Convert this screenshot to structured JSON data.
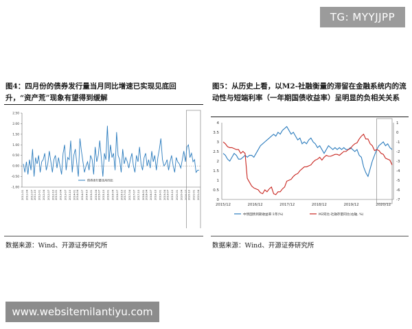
{
  "watermark_top": "TG: MYYJJPP",
  "watermark_bottom": "www.websitemilantiyu.com",
  "left_figure": {
    "title": "图4：四月份的债券发行量当月同比增速已实现见底回升，“资产荒”现象有望得到缓解",
    "source": "数据来源：Wind、开源证券研究所"
  },
  "right_figure": {
    "title": "图5：从历史上看，以M2-社融衡量的滞留在金融系统内的流动性与短端利率（一年期国债收益率）呈明显的负相关关系",
    "source": "数据来源：Wind、开源证券研究所"
  },
  "chart_data": [
    {
      "type": "line",
      "legend": [
        "债券发行量当月同比"
      ],
      "ylim": [
        -1.0,
        2.5
      ],
      "y_ticks": [
        "2.50",
        "2.00",
        "1.50",
        "1.00",
        "0.50",
        "0.00",
        "-0.50",
        "-1.00"
      ],
      "x_tick_labels": [
        "2011-01",
        "2011-04",
        "2011-07",
        "2011-10",
        "2012-01",
        "2012-04",
        "2012-07",
        "2012-10",
        "2013-01",
        "2013-04",
        "2013-07",
        "2013-10",
        "2014-01",
        "2014-04",
        "2014-07",
        "2014-10",
        "2015-01",
        "2015-04",
        "2015-07",
        "2015-10",
        "2016-01",
        "2016-04",
        "2016-07",
        "2016-10",
        "2017-01",
        "2017-04",
        "2017-07",
        "2017-10",
        "2018-01",
        "2018-04",
        "2018-07",
        "2018-10",
        "2019-01",
        "2019-04",
        "2019-07",
        "2019-10",
        "2020-01",
        "2020-04",
        "2020-07",
        "2020-10",
        "2021-01",
        "2021-04"
      ],
      "values": [
        0.1,
        -0.3,
        0.2,
        -0.4,
        0.3,
        -0.2,
        0.8,
        -0.5,
        0.4,
        0.1,
        0.5,
        -0.3,
        0.2,
        0.3,
        0.6,
        -0.2,
        0.1,
        0.7,
        0.2,
        -0.3,
        0.3,
        0.5,
        -0.1,
        0.4,
        0.0,
        -0.4,
        0.6,
        1.0,
        -0.2,
        0.4,
        0.3,
        1.2,
        -0.3,
        0.5,
        0.8,
        0.1,
        -0.5,
        1.3,
        0.7,
        0.2,
        -0.3,
        0.0,
        0.2,
        -0.2,
        0.5,
        0.3,
        -0.4,
        0.9,
        0.2,
        0.5,
        1.2,
        0.4,
        -0.5,
        0.6,
        0.3,
        1.9,
        0.2,
        1.0,
        0.4,
        0.6,
        -0.2,
        1.6,
        0.5,
        0.3,
        -0.3,
        0.8,
        0.1,
        0.4,
        0.2,
        -0.1,
        0.3,
        0.6,
        0.0,
        -0.3,
        0.5,
        0.2,
        0.9,
        0.1,
        -0.2,
        0.4,
        0.6,
        0.0,
        0.3,
        -0.1,
        0.7,
        0.2,
        0.5,
        -0.2,
        0.4,
        0.8,
        1.3,
        0.3,
        0.0,
        0.1,
        0.3,
        -0.2,
        0.2,
        0.5,
        0.0,
        -0.3,
        0.4,
        0.2,
        0.1,
        -0.1,
        0.3,
        0.7,
        0.2,
        0.9,
        1.0,
        0.4,
        0.6,
        0.2,
        0.3,
        -0.3,
        -0.2,
        -0.2
      ],
      "highlight_from_index": 108,
      "grid": false
    },
    {
      "type": "line",
      "y_left_ticks": [
        "4",
        "3.5",
        "3",
        "2.5",
        "2",
        "1.5",
        "1",
        "0.5",
        "0"
      ],
      "y_right_ticks": [
        "1",
        "0",
        "-1",
        "-2",
        "-3",
        "-4",
        "-5",
        "-6",
        "-7"
      ],
      "ylim_left": [
        0,
        4
      ],
      "ylim_right": [
        -7,
        1
      ],
      "x_tick_labels": [
        "2015/12",
        "2016/12",
        "2017/12",
        "2018/12",
        "2019/12",
        "2020/12"
      ],
      "series": [
        {
          "name": "中债国债到期收益率:1年(%)",
          "axis": "left",
          "color": "#2a7bbd",
          "values": [
            2.4,
            2.3,
            2.1,
            2.0,
            2.2,
            2.4,
            2.3,
            2.1,
            2.1,
            2.2,
            2.3,
            2.2,
            2.3,
            2.3,
            2.2,
            2.4,
            2.6,
            2.8,
            2.9,
            3.0,
            3.1,
            3.2,
            3.3,
            3.4,
            3.3,
            3.5,
            3.4,
            3.6,
            3.7,
            3.8,
            3.6,
            3.4,
            3.5,
            3.3,
            3.1,
            3.2,
            2.9,
            3.0,
            2.9,
            3.1,
            3.2,
            3.0,
            2.9,
            2.7,
            2.8,
            2.6,
            2.4,
            2.6,
            2.8,
            2.7,
            2.6,
            2.7,
            2.6,
            2.7,
            2.6,
            2.7,
            2.6,
            2.6,
            2.7,
            2.6,
            2.5,
            2.6,
            2.3,
            2.2,
            1.7,
            1.4,
            1.2,
            1.6,
            2.0,
            2.3,
            2.6,
            2.8,
            2.9,
            3.0,
            2.8,
            2.9,
            2.7,
            2.6
          ]
        },
        {
          "name": "M2同比-社融存量同比(右轴, %)",
          "axis": "right",
          "color": "#c8241e",
          "values": [
            -1.0,
            -1.2,
            -1.5,
            -1.6,
            -1.6,
            -1.7,
            -1.8,
            -1.8,
            -2.2,
            -2.0,
            -2.2,
            -4.8,
            -5.2,
            -5.6,
            -5.8,
            -5.9,
            -6.0,
            -6.3,
            -6.4,
            -6.0,
            -6.2,
            -5.9,
            -5.7,
            -6.4,
            -6.5,
            -6.2,
            -6.2,
            -5.9,
            -5.7,
            -5.1,
            -5.0,
            -4.9,
            -4.6,
            -4.4,
            -4.3,
            -4.0,
            -3.8,
            -3.6,
            -3.6,
            -3.5,
            -3.4,
            -3.1,
            -2.9,
            -2.8,
            -2.6,
            -2.9,
            -2.6,
            -2.4,
            -2.5,
            -2.5,
            -2.4,
            -2.3,
            -2.3,
            -2.4,
            -2.2,
            -2.0,
            -2.0,
            -1.8,
            -1.7,
            -1.4,
            -1.2,
            -1.1,
            -0.7,
            -0.4,
            -0.2,
            -0.7,
            -0.7,
            -1.2,
            -1.4,
            -1.9,
            -1.8,
            -1.9,
            -2.2,
            -2.3,
            -2.7,
            -2.8,
            -2.9,
            -3.4
          ]
        }
      ],
      "highlight_from_index": 70,
      "grid": false
    }
  ]
}
